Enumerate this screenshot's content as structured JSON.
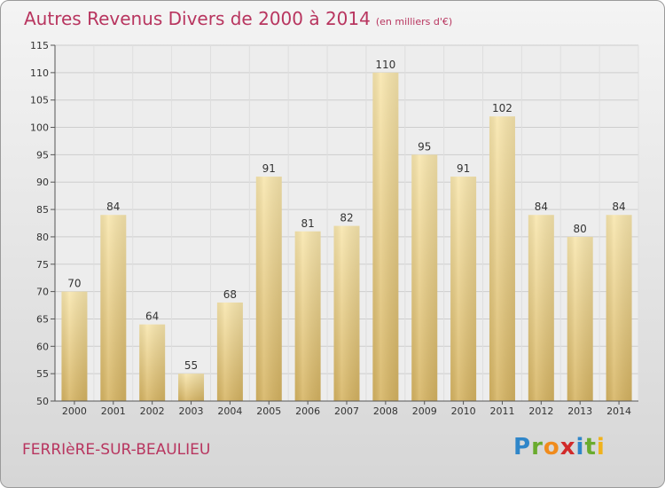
{
  "header": {
    "title": "Autres Revenus Divers de 2000 à 2014",
    "subtitle": "(en milliers d'€)"
  },
  "footer": {
    "commune": "FERRIèRE-SUR-BEAULIEU",
    "logo": "Proxiti"
  },
  "colors": {
    "title": "#b8355f",
    "bar_light": "#f7e2a4",
    "bar_dark": "#d9b65f",
    "grid": "#cfcfcf"
  },
  "chart_data": {
    "type": "bar",
    "title": "Autres Revenus Divers de 2000 à 2014",
    "subtitle": "(en milliers d'€)",
    "xlabel": "",
    "ylabel": "",
    "categories": [
      "2000",
      "2001",
      "2002",
      "2003",
      "2004",
      "2005",
      "2006",
      "2007",
      "2008",
      "2009",
      "2010",
      "2011",
      "2012",
      "2013",
      "2014"
    ],
    "values": [
      70,
      84,
      64,
      55,
      68,
      91,
      81,
      82,
      110,
      95,
      91,
      102,
      84,
      80,
      84
    ],
    "ylim": [
      50,
      115
    ],
    "yticks": [
      50,
      55,
      60,
      65,
      70,
      75,
      80,
      85,
      90,
      95,
      100,
      105,
      110,
      115
    ],
    "grid": true,
    "legend": "none"
  }
}
